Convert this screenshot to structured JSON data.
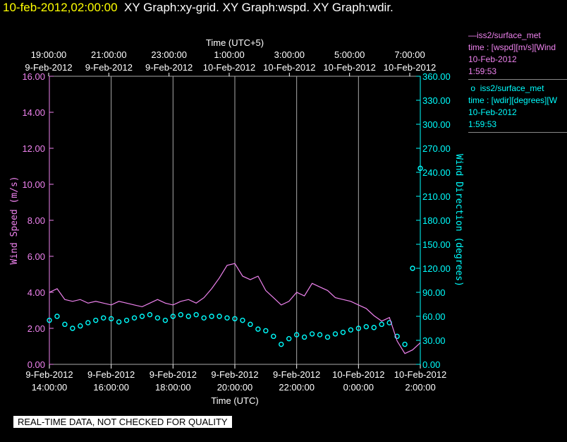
{
  "header": {
    "timestamp": "10-feb-2012,02:00:00",
    "graphs": "XY Graph:xy-grid.  XY Graph:wspd.  XY Graph:wdir."
  },
  "legend": [
    {
      "symbol": "—",
      "name": "iss2/surface_met",
      "field": "time : [wspd][m/s][Wind",
      "date": "10-Feb-2012",
      "time": "1:59:53",
      "color": "#ee82ee"
    },
    {
      "symbol": "o",
      "name": "iss2/surface_met",
      "field": "time : [wdir][degrees][W",
      "date": "10-Feb-2012",
      "time": "1:59:53",
      "color": "#00ffff"
    }
  ],
  "quality_notice": "REAL-TIME DATA, NOT CHECKED FOR QUALITY",
  "chart_data": {
    "type": "line",
    "top_axis": {
      "title": "Time (UTC+5)",
      "ticks": [
        {
          "time": "19:00:00",
          "date": "9-Feb-2012"
        },
        {
          "time": "21:00:00",
          "date": "9-Feb-2012"
        },
        {
          "time": "23:00:00",
          "date": "9-Feb-2012"
        },
        {
          "time": "1:00:00",
          "date": "10-Feb-2012"
        },
        {
          "time": "3:00:00",
          "date": "10-Feb-2012"
        },
        {
          "time": "5:00:00",
          "date": "10-Feb-2012"
        },
        {
          "time": "7:00:00",
          "date": "10-Feb-2012"
        }
      ]
    },
    "bottom_axis": {
      "title": "Time (UTC)",
      "ticks": [
        {
          "date": "9-Feb-2012",
          "time": "14:00:00"
        },
        {
          "date": "9-Feb-2012",
          "time": "16:00:00"
        },
        {
          "date": "9-Feb-2012",
          "time": "18:00:00"
        },
        {
          "date": "9-Feb-2012",
          "time": "20:00:00"
        },
        {
          "date": "9-Feb-2012",
          "time": "22:00:00"
        },
        {
          "date": "10-Feb-2012",
          "time": "0:00:00"
        },
        {
          "date": "10-Feb-2012",
          "time": "2:00:00"
        }
      ],
      "range": [
        "2012-02-09 14:00",
        "2012-02-10 02:00"
      ]
    },
    "left_axis": {
      "title": "Wind Speed (m/s)",
      "ylim": [
        0,
        16
      ],
      "ticks": [
        "0.00",
        "2.00",
        "4.00",
        "6.00",
        "8.00",
        "10.00",
        "12.00",
        "14.00",
        "16.00"
      ],
      "color": "#ee82ee"
    },
    "right_axis": {
      "title": "Wind Direction (degrees)",
      "ylim": [
        0,
        360
      ],
      "ticks": [
        "0.00",
        "30.00",
        "60.00",
        "90.00",
        "120.00",
        "150.00",
        "180.00",
        "210.00",
        "240.00",
        "270.00",
        "300.00",
        "330.00",
        "360.00"
      ],
      "color": "#00ffff"
    },
    "grid": "vertical",
    "series": [
      {
        "name": "iss2/surface_met",
        "kind": "line",
        "axis": "left",
        "color": "#ee82ee",
        "hours_utc": [
          14.0,
          14.25,
          14.5,
          14.75,
          15.0,
          15.25,
          15.5,
          15.75,
          16.0,
          16.25,
          16.5,
          16.75,
          17.0,
          17.25,
          17.5,
          17.75,
          18.0,
          18.25,
          18.5,
          18.75,
          19.0,
          19.25,
          19.5,
          19.75,
          20.0,
          20.25,
          20.5,
          20.75,
          21.0,
          21.25,
          21.5,
          21.75,
          22.0,
          22.25,
          22.5,
          22.75,
          23.0,
          23.25,
          23.5,
          23.75,
          24.0,
          24.25,
          24.5,
          24.75,
          25.0,
          25.25,
          25.5,
          25.75,
          26.0
        ],
        "values": [
          4.0,
          4.2,
          3.6,
          3.5,
          3.6,
          3.4,
          3.5,
          3.4,
          3.3,
          3.5,
          3.4,
          3.3,
          3.2,
          3.4,
          3.6,
          3.4,
          3.3,
          3.5,
          3.6,
          3.4,
          3.7,
          4.2,
          4.8,
          5.5,
          5.6,
          4.9,
          4.7,
          4.9,
          4.1,
          3.7,
          3.3,
          3.5,
          4.0,
          3.8,
          4.5,
          4.3,
          4.1,
          3.7,
          3.6,
          3.5,
          3.3,
          3.1,
          2.7,
          2.4,
          2.6,
          1.3,
          0.6,
          0.8,
          1.2
        ]
      },
      {
        "name": "iss2/surface_met",
        "kind": "scatter",
        "axis": "right",
        "color": "#00ffff",
        "hours_utc": [
          14.0,
          14.25,
          14.5,
          14.75,
          15.0,
          15.25,
          15.5,
          15.75,
          16.0,
          16.25,
          16.5,
          16.75,
          17.0,
          17.25,
          17.5,
          17.75,
          18.0,
          18.25,
          18.5,
          18.75,
          19.0,
          19.25,
          19.5,
          19.75,
          20.0,
          20.25,
          20.5,
          20.75,
          21.0,
          21.25,
          21.5,
          21.75,
          22.0,
          22.25,
          22.5,
          22.75,
          23.0,
          23.25,
          23.5,
          23.75,
          24.0,
          24.25,
          24.5,
          24.75,
          25.0,
          25.25,
          25.5,
          25.75,
          26.0
        ],
        "values": [
          55,
          60,
          50,
          45,
          48,
          52,
          55,
          58,
          57,
          53,
          55,
          58,
          60,
          62,
          58,
          55,
          60,
          62,
          60,
          62,
          58,
          60,
          60,
          58,
          57,
          55,
          50,
          44,
          42,
          35,
          25,
          32,
          37,
          34,
          38,
          37,
          34,
          38,
          40,
          43,
          45,
          47,
          46,
          50,
          52,
          35,
          25,
          120,
          245
        ]
      }
    ]
  }
}
